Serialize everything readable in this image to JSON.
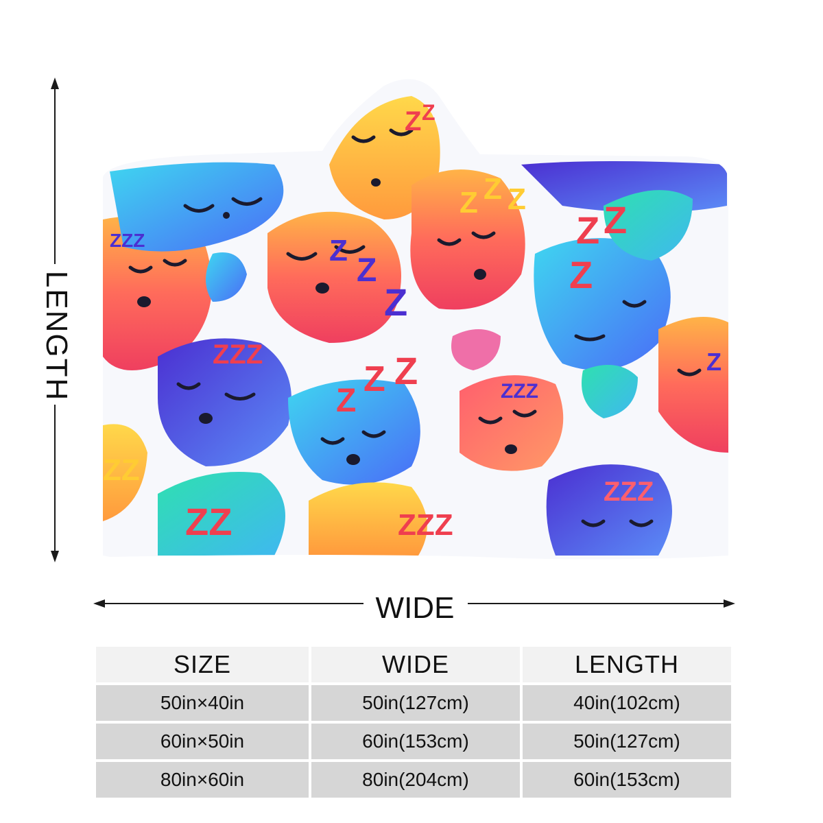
{
  "dimensions": {
    "length_label": "LENGTH",
    "wide_label": "WIDE"
  },
  "size_table": {
    "headers": [
      "SIZE",
      "WIDE",
      "LENGTH"
    ],
    "rows": [
      [
        "50in×40in",
        "50in(127cm)",
        "40in(102cm)"
      ],
      [
        "60in×50in",
        "60in(153cm)",
        "50in(127cm)"
      ],
      [
        "80in×60in",
        "80in(204cm)",
        "60in(153cm)"
      ]
    ]
  },
  "pattern": {
    "zzz_text": "ZZZ",
    "colors": {
      "red": "#f05a5f",
      "coral": "#ff6b6b",
      "yellow": "#ffcc33",
      "orange": "#ff8a3d",
      "blue": "#4a6cf7",
      "purple": "#4b2fd1",
      "teal": "#3fd6c6",
      "pink": "#ef6fa8"
    }
  }
}
